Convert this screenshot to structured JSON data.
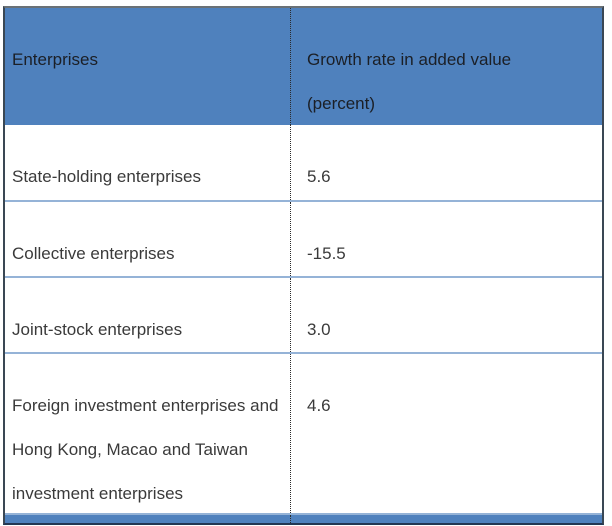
{
  "table": {
    "header": {
      "col1": "Enterprises",
      "col2_line1": "Growth rate in added value",
      "col2_line2": "(percent)"
    },
    "rows": [
      {
        "enterprise": "State-holding enterprises",
        "growth_rate": "5.6"
      },
      {
        "enterprise": "Collective enterprises",
        "growth_rate": "-15.5"
      },
      {
        "enterprise": "Joint-stock enterprises",
        "growth_rate": "3.0"
      },
      {
        "enterprise": "Foreign investment enterprises and Hong Kong, Macao and Taiwan investment enterprises",
        "growth_rate": "4.6"
      }
    ],
    "colors": {
      "header_bg": "#4F81BD",
      "footer_bar": "#4F81BD",
      "row_separator": "#95B3D7",
      "outer_border": "#323E4E",
      "column_divider": "#2B2B2B",
      "header_text": "#1B1F26",
      "body_text": "#3A3A3A"
    }
  },
  "chart_data": {
    "type": "table",
    "title": "",
    "columns": [
      "Enterprises",
      "Growth rate in added value (percent)"
    ],
    "rows": [
      [
        "State-holding enterprises",
        5.6
      ],
      [
        "Collective enterprises",
        -15.5
      ],
      [
        "Joint-stock enterprises",
        3.0
      ],
      [
        "Foreign investment enterprises and Hong Kong, Macao and Taiwan investment enterprises",
        4.6
      ]
    ],
    "layout_hints": {
      "header_fill": "#4F81BD",
      "grid": "horizontal light-blue separators, dotted vertical column divider",
      "legend_position": "none"
    }
  }
}
